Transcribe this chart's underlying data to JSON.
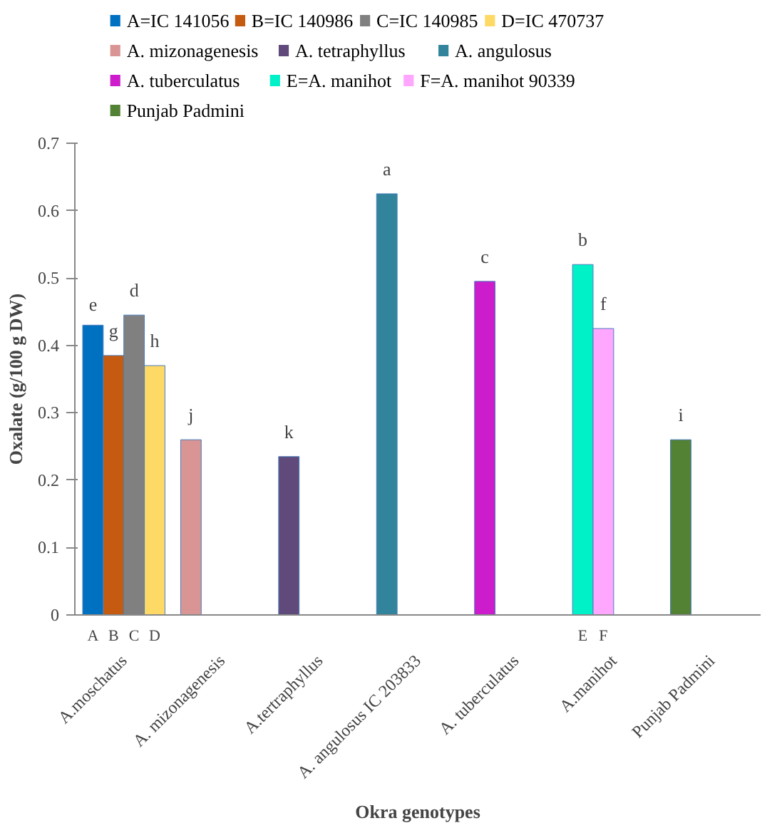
{
  "chart_data": {
    "type": "bar",
    "categories": [
      "A.moschatus",
      "A. mizonagenesis",
      "A.tertraphyllus",
      "A. angulosus IC 203833",
      "A. tuberculatus",
      "A.manihot",
      "Punjab Padmini"
    ],
    "xlabel": "Okra genotypes",
    "ylabel": "Oxalate (g/100 g DW)",
    "ylim": [
      0,
      0.7
    ],
    "yticks": [
      0,
      0.1,
      0.2,
      0.3,
      0.4,
      0.5,
      0.6,
      0.7
    ],
    "grid": false,
    "legend": "top",
    "series": [
      {
        "name": "A=IC 141056",
        "color": "#0070c0",
        "values": [
          0.43,
          null,
          null,
          null,
          null,
          null,
          null
        ],
        "value_labels": [
          "e",
          null,
          null,
          null,
          null,
          null,
          null
        ]
      },
      {
        "name": "B=IC 140986",
        "color": "#c55a11",
        "values": [
          0.385,
          null,
          null,
          null,
          null,
          null,
          null
        ],
        "value_labels": [
          "g",
          null,
          null,
          null,
          null,
          null,
          null
        ]
      },
      {
        "name": "C=IC 140985",
        "color": "#808080",
        "values": [
          0.445,
          null,
          null,
          null,
          null,
          null,
          null
        ],
        "value_labels": [
          "d",
          null,
          null,
          null,
          null,
          null,
          null
        ]
      },
      {
        "name": "D=IC 470737",
        "color": "#ffd966",
        "values": [
          0.37,
          null,
          null,
          null,
          null,
          null,
          null
        ],
        "value_labels": [
          "h",
          null,
          null,
          null,
          null,
          null,
          null
        ]
      },
      {
        "name": "A. mizonagenesis",
        "color": "#d99594",
        "values": [
          null,
          0.26,
          null,
          null,
          null,
          null,
          null
        ],
        "value_labels": [
          null,
          "j",
          null,
          null,
          null,
          null,
          null
        ]
      },
      {
        "name": "A. tetraphyllus",
        "color": "#604a7b",
        "values": [
          null,
          null,
          0.235,
          null,
          null,
          null,
          null
        ],
        "value_labels": [
          null,
          null,
          "k",
          null,
          null,
          null,
          null
        ]
      },
      {
        "name": "A. angulosus",
        "color": "#31849b",
        "values": [
          null,
          null,
          null,
          0.625,
          null,
          null,
          null
        ],
        "value_labels": [
          null,
          null,
          null,
          "a",
          null,
          null,
          null
        ]
      },
      {
        "name": "A. tuberculatus",
        "color": "#cc1ccc",
        "values": [
          null,
          null,
          null,
          null,
          0.495,
          null,
          null
        ],
        "value_labels": [
          null,
          null,
          null,
          null,
          "c",
          null,
          null
        ]
      },
      {
        "name": "E=A. manihot",
        "color": "#00f0c8",
        "values": [
          null,
          null,
          null,
          null,
          null,
          0.52,
          null
        ],
        "value_labels": [
          null,
          null,
          null,
          null,
          null,
          "b",
          null
        ]
      },
      {
        "name": "F=A. manihot 90339",
        "color": "#ffa6ff",
        "values": [
          null,
          null,
          null,
          null,
          null,
          0.425,
          null
        ],
        "value_labels": [
          null,
          null,
          null,
          null,
          null,
          "f",
          null
        ]
      },
      {
        "name": "Punjab Padmini",
        "color": "#548235",
        "values": [
          null,
          null,
          null,
          null,
          null,
          null,
          0.26
        ],
        "value_labels": [
          null,
          null,
          null,
          null,
          null,
          null,
          "i"
        ]
      }
    ],
    "annotations": [
      "A",
      "B",
      "C",
      "D",
      "E",
      "F"
    ]
  }
}
